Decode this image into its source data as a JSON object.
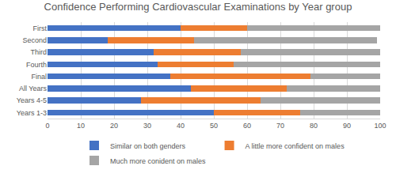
{
  "chart_data": {
    "type": "bar",
    "title": "Confidence Performing Cardiovascular Examinations by Year group",
    "orientation": "horizontal",
    "stacked": true,
    "grid": true,
    "legend": "bottom",
    "categories": [
      "First",
      "Second",
      "Third",
      "Fourth",
      "Final",
      "All Years",
      "Years 4-5",
      "Years 1-3"
    ],
    "series": [
      {
        "name": "Similar on both genders",
        "color": "#4472c4",
        "values": [
          40,
          18,
          32,
          33,
          37,
          43,
          28,
          50
        ]
      },
      {
        "name": "A little more confident on males",
        "color": "#ed7d31",
        "values": [
          20,
          26,
          26,
          23,
          42,
          29,
          36,
          26
        ]
      },
      {
        "name": "Much more conident on males",
        "color": "#a5a5a5",
        "values": [
          40,
          55,
          42,
          44,
          21,
          28,
          36,
          24
        ]
      }
    ],
    "xlim": [
      0,
      100
    ],
    "xticks": [
      0,
      10,
      20,
      30,
      40,
      50,
      60,
      70,
      80,
      90,
      100
    ]
  }
}
